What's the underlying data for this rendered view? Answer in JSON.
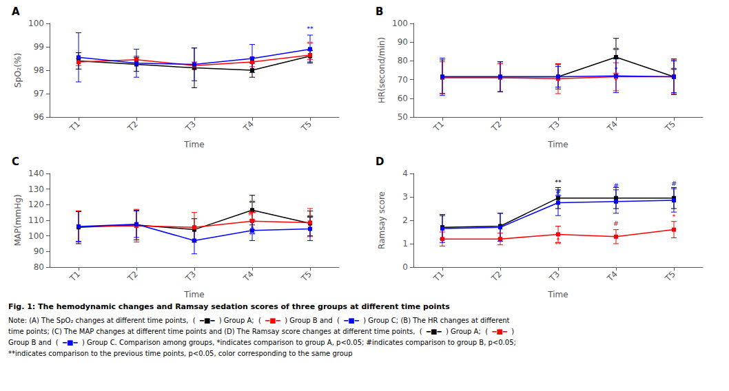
{
  "title": "Fig. 1: The hemodynamic changes and Ramsay sedation scores of three groups at different time points",
  "subtitle": [
    [
      {
        "text": "Note: (A) The SpO₂ changes at different time points,  (  ",
        "color": "#000000"
      },
      {
        "text": "━■━",
        "color": "#000000"
      },
      {
        "text": "  ) Group A;  (  ",
        "color": "#000000"
      },
      {
        "text": "━■━",
        "color": "#FF0000"
      },
      {
        "text": "  ) Group B and  (  ",
        "color": "#000000"
      },
      {
        "text": "━■━",
        "color": "#0000FF"
      },
      {
        "text": "  ) Group C; (B) The HR changes at different",
        "color": "#000000"
      }
    ],
    [
      {
        "text": "time points; (C) The MAP changes at different time points and (D) The Ramsay score changes at different time points,  (  ",
        "color": "#000000"
      },
      {
        "text": "━■━",
        "color": "#000000"
      },
      {
        "text": "  ) Group A;  (  ",
        "color": "#000000"
      },
      {
        "text": "━■━",
        "color": "#FF0000"
      },
      {
        "text": "  )",
        "color": "#000000"
      }
    ],
    [
      {
        "text": "Group B and  (  ",
        "color": "#000000"
      },
      {
        "text": "━■━",
        "color": "#0000FF"
      },
      {
        "text": "  ) Group C. Comparison among groups, *indicates comparison to group A, p<0.05; #indicates comparison to group B, p<0.05;",
        "color": "#000000"
      }
    ],
    [
      {
        "text": "**indicates comparison to the previous time points, p<0.05, color corresponding to the same group",
        "color": "#000000"
      }
    ]
  ],
  "chart_data": [
    {
      "type": "line",
      "title": "A",
      "xlabel": "Time",
      "ylabel": "SpO₂(%)",
      "categories": [
        "T1",
        "T2",
        "T3",
        "T4",
        "T5"
      ],
      "ylim": [
        96,
        100
      ],
      "yticks": [
        96,
        97,
        98,
        99,
        100
      ],
      "grid": false,
      "series": [
        {
          "color": "#000000",
          "marker": "square",
          "values": [
            98.4,
            98.25,
            98.1,
            98.0,
            98.6
          ],
          "err": [
            0.35,
            0.3,
            0.85,
            0.3,
            0.25
          ]
        },
        {
          "color": "#FF0000",
          "marker": "square",
          "values": [
            98.35,
            98.45,
            98.2,
            98.35,
            98.65
          ],
          "err": [
            0.15,
            0.15,
            0.15,
            0.2,
            0.2
          ]
        },
        {
          "color": "#0000FF",
          "marker": "square",
          "values": [
            98.55,
            98.3,
            98.25,
            98.5,
            98.9
          ],
          "err": [
            1.05,
            0.6,
            0.7,
            0.6,
            0.6
          ]
        }
      ],
      "annotations": [
        {
          "x": "T5",
          "y": 99.6,
          "text": "**",
          "color": "#0000FF"
        },
        {
          "x": "T5",
          "y": 98.95,
          "text": "**",
          "color": "#FF0000"
        }
      ]
    },
    {
      "type": "line",
      "title": "B",
      "xlabel": "Time",
      "ylabel": "HR(second/min)",
      "categories": [
        "T1",
        "T2",
        "T3",
        "T4",
        "T5"
      ],
      "ylim": [
        50,
        100
      ],
      "yticks": [
        50,
        60,
        70,
        80,
        90,
        100
      ],
      "grid": false,
      "series": [
        {
          "color": "#000000",
          "marker": "square",
          "values": [
            71.5,
            71.5,
            71.5,
            82.0,
            71.5
          ],
          "err": [
            9.0,
            8.0,
            6.5,
            10.0,
            9.5
          ]
        },
        {
          "color": "#FF0000",
          "marker": "square",
          "values": [
            71.0,
            71.0,
            70.5,
            71.5,
            71.5
          ],
          "err": [
            8.5,
            7.5,
            8.0,
            7.5,
            9.0
          ]
        },
        {
          "color": "#0000FF",
          "marker": "square",
          "values": [
            71.5,
            71.5,
            71.5,
            72.0,
            71.5
          ],
          "err": [
            10.0,
            8.0,
            5.5,
            9.0,
            8.5
          ]
        }
      ],
      "annotations": [
        {
          "x": "T4",
          "y": 83.5,
          "text": "**",
          "color": "#000000"
        },
        {
          "x": "T4",
          "y": 73.5,
          "text": "*",
          "color": "#0000FF"
        },
        {
          "x": "T4",
          "y": 70.5,
          "text": "**",
          "color": "#FF0000"
        },
        {
          "x": "T4",
          "y": 67.5,
          "text": "*",
          "color": "#FF0000"
        },
        {
          "x": "T5",
          "y": 73.0,
          "text": "**",
          "color": "#000000"
        }
      ]
    },
    {
      "type": "line",
      "title": "C",
      "xlabel": "Time",
      "ylabel": "MAP(mmHg)",
      "categories": [
        "T1",
        "T2",
        "T3",
        "T4",
        "T5"
      ],
      "ylim": [
        80,
        140
      ],
      "yticks": [
        80,
        90,
        100,
        110,
        120,
        130,
        140
      ],
      "grid": false,
      "series": [
        {
          "color": "#000000",
          "marker": "square",
          "values": [
            105.5,
            107.0,
            104.0,
            116.5,
            108.0
          ],
          "err": [
            10.5,
            9.5,
            7.0,
            9.5,
            8.0
          ]
        },
        {
          "color": "#FF0000",
          "marker": "square",
          "values": [
            106.0,
            106.5,
            105.5,
            109.5,
            108.5
          ],
          "err": [
            10.0,
            10.5,
            9.5,
            5.5,
            9.0
          ]
        },
        {
          "color": "#0000FF",
          "marker": "square",
          "values": [
            106.0,
            107.5,
            97.0,
            103.5,
            104.5
          ],
          "err": [
            9.5,
            8.5,
            8.5,
            6.5,
            7.5
          ]
        }
      ],
      "annotations": [
        {
          "x": "T4",
          "y": 118.5,
          "text": "**",
          "color": "#000000"
        },
        {
          "x": "T4",
          "y": 112.0,
          "text": "#*",
          "color": "#FF0000"
        },
        {
          "x": "T4",
          "y": 107.0,
          "text": "**",
          "color": "#FF0000"
        },
        {
          "x": "T4",
          "y": 102.5,
          "text": "*",
          "color": "#0000FF"
        },
        {
          "x": "T4",
          "y": 98.5,
          "text": "**",
          "color": "#0000FF"
        },
        {
          "x": "T5",
          "y": 109.5,
          "text": "**",
          "color": "#000000"
        }
      ]
    },
    {
      "type": "line",
      "title": "D",
      "xlabel": "Time",
      "ylabel": "Ramsay score",
      "categories": [
        "T1",
        "T2",
        "T3",
        "T4",
        "T5"
      ],
      "ylim": [
        0,
        4
      ],
      "yticks": [
        0,
        1,
        2,
        3,
        4
      ],
      "grid": false,
      "series": [
        {
          "color": "#000000",
          "marker": "square",
          "values": [
            1.7,
            1.75,
            2.95,
            2.95,
            2.95
          ],
          "err": [
            0.5,
            0.55,
            0.45,
            0.45,
            0.45
          ]
        },
        {
          "color": "#FF0000",
          "marker": "square",
          "values": [
            1.2,
            1.2,
            1.4,
            1.3,
            1.6
          ],
          "err": [
            0.3,
            0.25,
            0.35,
            0.3,
            0.35
          ]
        },
        {
          "color": "#0000FF",
          "marker": "square",
          "values": [
            1.65,
            1.7,
            2.75,
            2.8,
            2.85
          ],
          "err": [
            0.6,
            0.6,
            0.55,
            0.5,
            0.5
          ]
        }
      ],
      "annotations": [
        {
          "x": "T3",
          "y": 3.45,
          "text": "**",
          "color": "#000000"
        },
        {
          "x": "T3",
          "y": 3.05,
          "text": "#",
          "color": "#0000FF"
        },
        {
          "x": "T3",
          "y": 2.85,
          "text": "**",
          "color": "#0000FF"
        },
        {
          "x": "T3",
          "y": 1.0,
          "text": "*",
          "color": "#FF0000"
        },
        {
          "x": "T3",
          "y": 0.82,
          "text": "**",
          "color": "#FF0000"
        },
        {
          "x": "T4",
          "y": 3.3,
          "text": "#",
          "color": "#0000FF"
        },
        {
          "x": "T4",
          "y": 1.68,
          "text": "#",
          "color": "#FF0000"
        },
        {
          "x": "T5",
          "y": 3.4,
          "text": "#",
          "color": "#0000FF"
        },
        {
          "x": "T5",
          "y": 2.0,
          "text": "*",
          "color": "#FF0000"
        }
      ]
    }
  ]
}
